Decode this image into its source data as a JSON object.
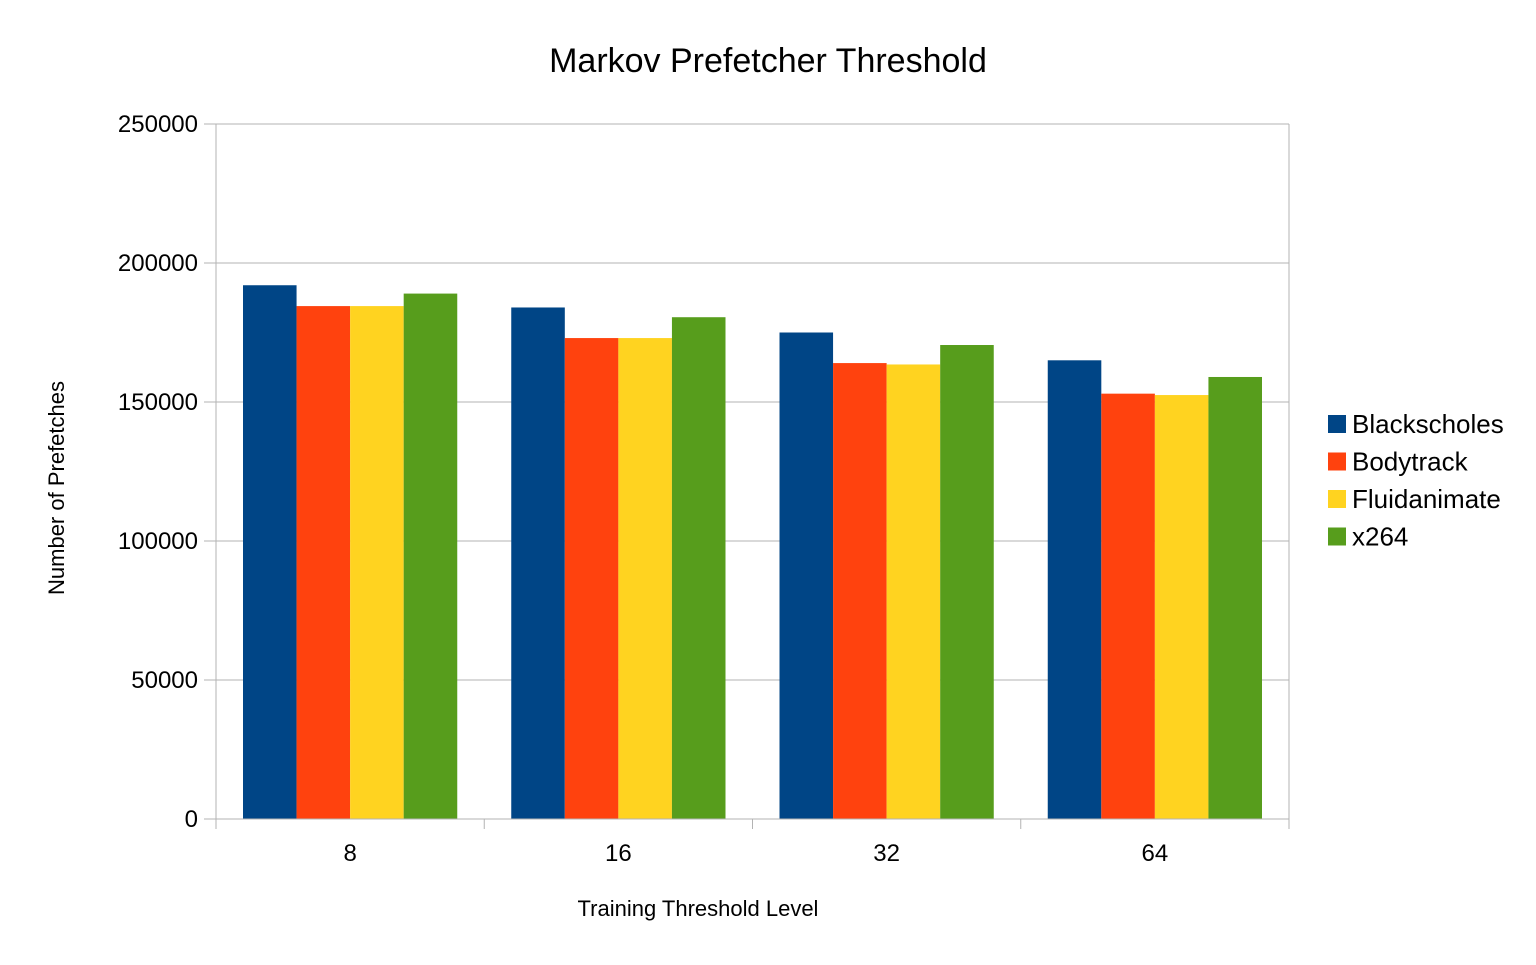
{
  "chart_data": {
    "type": "bar",
    "title": "Markov Prefetcher Threshold",
    "xlabel": "Training Threshold Level",
    "ylabel": "Number of Prefetches",
    "categories": [
      "8",
      "16",
      "32",
      "64"
    ],
    "ylim": [
      0,
      250000
    ],
    "yticks": [
      "0",
      "50000",
      "100000",
      "150000",
      "200000",
      "250000"
    ],
    "ytick_values": [
      0,
      50000,
      100000,
      150000,
      200000,
      250000
    ],
    "grid": true,
    "legend_position": "right",
    "series": [
      {
        "name": "Blackscholes",
        "color": "#004586",
        "values": [
          192000,
          184000,
          175000,
          165000
        ]
      },
      {
        "name": "Bodytrack",
        "color": "#ff420e",
        "values": [
          184500,
          173000,
          164000,
          153000
        ]
      },
      {
        "name": "Fluidanimate",
        "color": "#ffd320",
        "values": [
          184500,
          173000,
          163500,
          152500
        ]
      },
      {
        "name": "x264",
        "color": "#579d1c",
        "values": [
          189000,
          180500,
          170500,
          159000
        ]
      }
    ]
  }
}
